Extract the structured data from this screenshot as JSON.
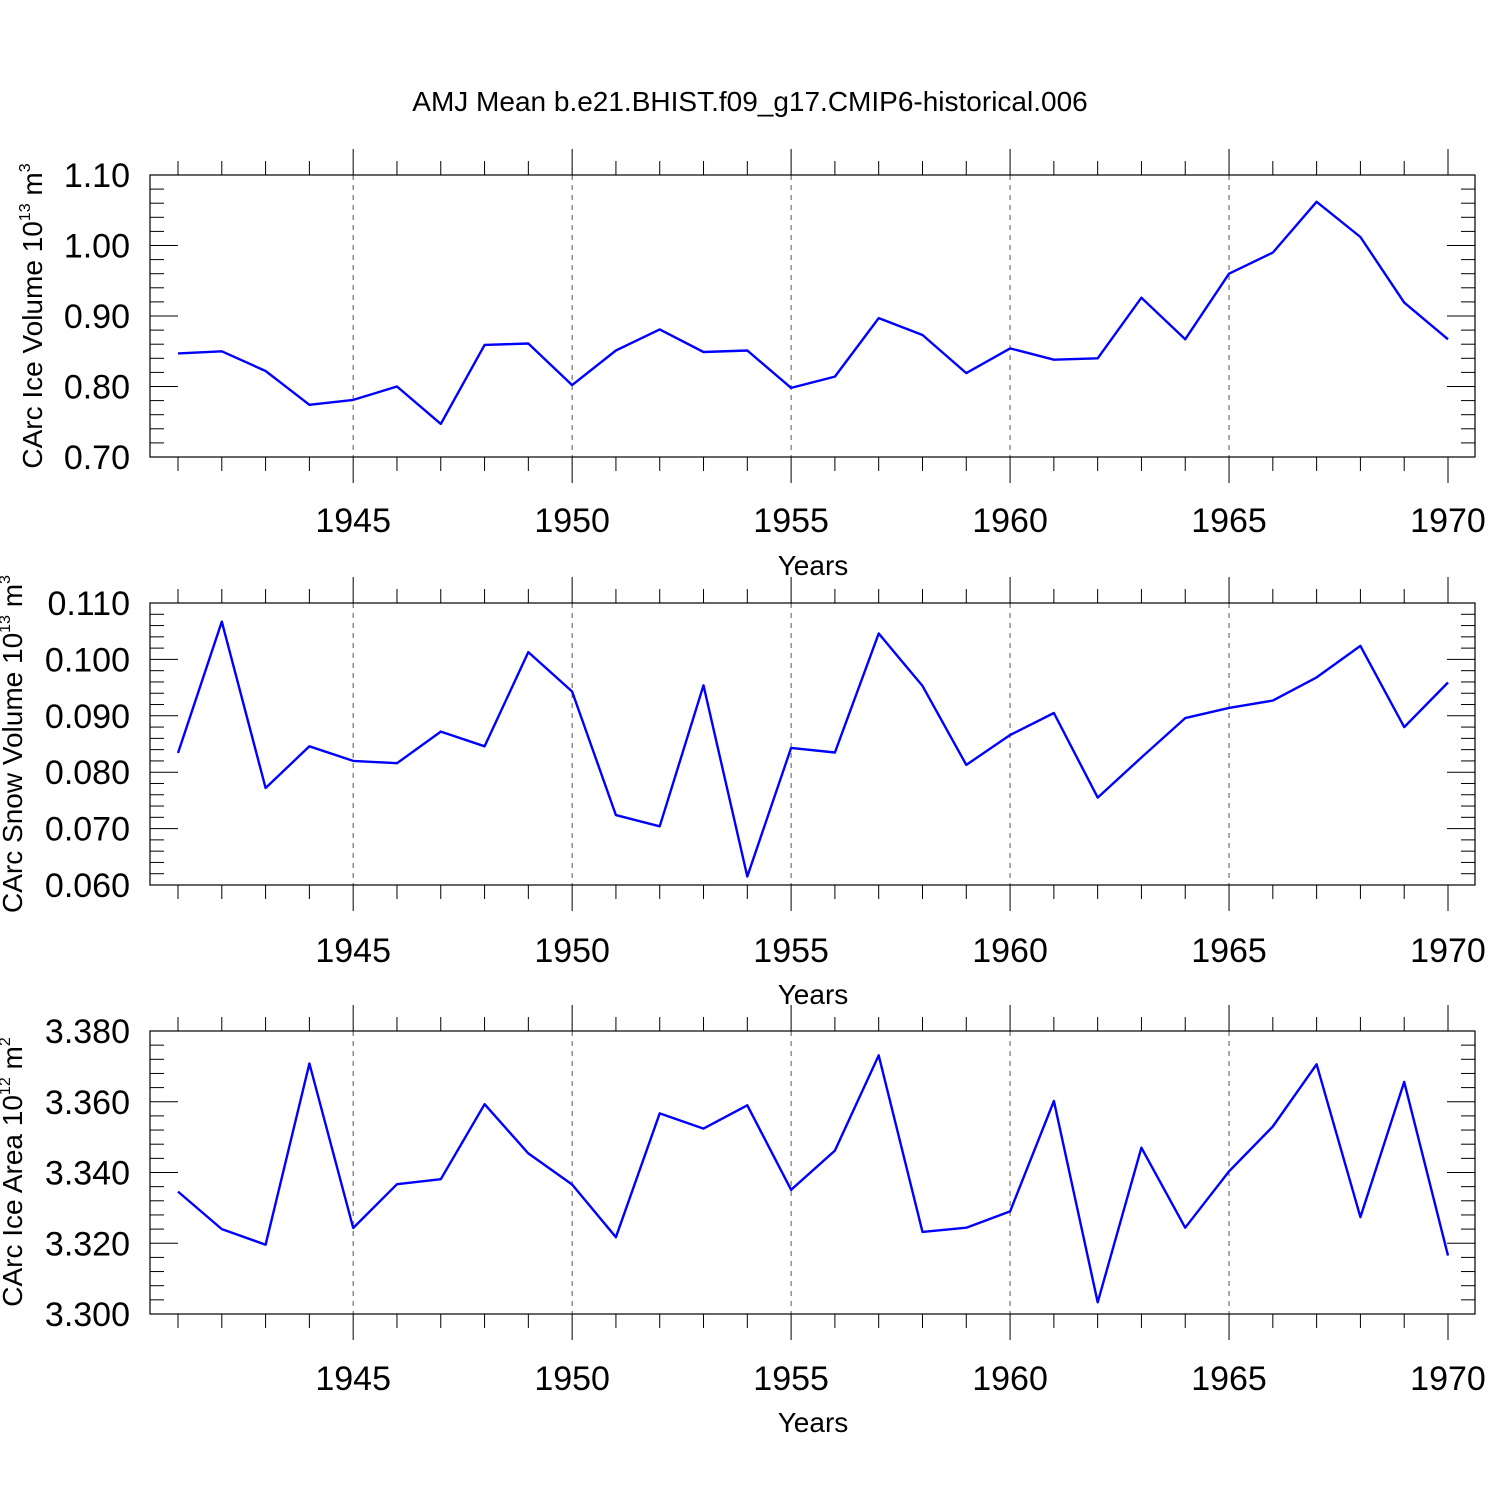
{
  "title": "AMJ Mean b.e21.BHIST.f09_g17.CMIP6-historical.006",
  "chart_data": [
    {
      "type": "line",
      "xlabel": "Years",
      "ylabel": {
        "main": "CArc Ice Volume 10",
        "sup": "13",
        "unit": " m",
        "unit_sup": "3"
      },
      "xlim": [
        1941,
        1970
      ],
      "ylim": [
        0.7,
        1.1
      ],
      "x_ticks": [
        "1945",
        "1950",
        "1955",
        "1960",
        "1965",
        "1970"
      ],
      "y_ticks": [
        "0.70",
        "0.80",
        "0.90",
        "1.00",
        "1.10"
      ],
      "grid": "vertical dashed at major x ticks",
      "line_color": "#0000ff",
      "x": [
        1941,
        1942,
        1943,
        1944,
        1945,
        1946,
        1947,
        1948,
        1949,
        1950,
        1951,
        1952,
        1953,
        1954,
        1955,
        1956,
        1957,
        1958,
        1959,
        1960,
        1961,
        1962,
        1963,
        1964,
        1965,
        1966,
        1967,
        1968,
        1969,
        1970
      ],
      "values": [
        0.847,
        0.85,
        0.822,
        0.774,
        0.781,
        0.8,
        0.747,
        0.859,
        0.861,
        0.802,
        0.851,
        0.881,
        0.849,
        0.851,
        0.798,
        0.814,
        0.897,
        0.873,
        0.819,
        0.854,
        0.838,
        0.84,
        0.926,
        0.867,
        0.96,
        0.99,
        1.062,
        1.012,
        0.919,
        0.867
      ]
    },
    {
      "type": "line",
      "xlabel": "Years",
      "ylabel": {
        "main": "CArc Snow Volume 10",
        "sup": "13",
        "unit": " m",
        "unit_sup": "3"
      },
      "xlim": [
        1941,
        1970
      ],
      "ylim": [
        0.06,
        0.11
      ],
      "x_ticks": [
        "1945",
        "1950",
        "1955",
        "1960",
        "1965",
        "1970"
      ],
      "y_ticks": [
        "0.060",
        "0.070",
        "0.080",
        "0.090",
        "0.100",
        "0.110"
      ],
      "grid": "vertical dashed at major x ticks",
      "line_color": "#0000ff",
      "x": [
        1941,
        1942,
        1943,
        1944,
        1945,
        1946,
        1947,
        1948,
        1949,
        1950,
        1951,
        1952,
        1953,
        1954,
        1955,
        1956,
        1957,
        1958,
        1959,
        1960,
        1961,
        1962,
        1963,
        1964,
        1965,
        1966,
        1967,
        1968,
        1969,
        1970
      ],
      "values": [
        0.0834,
        0.1067,
        0.0772,
        0.0846,
        0.082,
        0.0816,
        0.0872,
        0.0846,
        0.1013,
        0.0943,
        0.0724,
        0.0704,
        0.0954,
        0.0615,
        0.0843,
        0.0835,
        0.1046,
        0.0953,
        0.0813,
        0.0866,
        0.0905,
        0.0755,
        0.0826,
        0.0896,
        0.0914,
        0.0927,
        0.0968,
        0.1024,
        0.088,
        0.0959
      ]
    },
    {
      "type": "line",
      "xlabel": "Years",
      "ylabel": {
        "main": "CArc Ice Area 10",
        "sup": "12",
        "unit": " m",
        "unit_sup": "2"
      },
      "xlim": [
        1941,
        1970
      ],
      "ylim": [
        3.3,
        3.38
      ],
      "x_ticks": [
        "1945",
        "1950",
        "1955",
        "1960",
        "1965",
        "1970"
      ],
      "y_ticks": [
        "3.300",
        "3.320",
        "3.340",
        "3.360",
        "3.380"
      ],
      "grid": "vertical dashed at major x ticks",
      "line_color": "#0000ff",
      "x": [
        1941,
        1942,
        1943,
        1944,
        1945,
        1946,
        1947,
        1948,
        1949,
        1950,
        1951,
        1952,
        1953,
        1954,
        1955,
        1956,
        1957,
        1958,
        1959,
        1960,
        1961,
        1962,
        1963,
        1964,
        1965,
        1966,
        1967,
        1968,
        1969,
        1970
      ],
      "values": [
        3.3346,
        3.324,
        3.3196,
        3.3708,
        3.3243,
        3.3367,
        3.3381,
        3.3593,
        3.3454,
        3.3366,
        3.3217,
        3.3567,
        3.3524,
        3.359,
        3.3351,
        3.3462,
        3.3731,
        3.3232,
        3.3244,
        3.329,
        3.3602,
        3.3033,
        3.347,
        3.3244,
        3.3403,
        3.353,
        3.3706,
        3.3274,
        3.3656,
        3.3165
      ]
    }
  ]
}
